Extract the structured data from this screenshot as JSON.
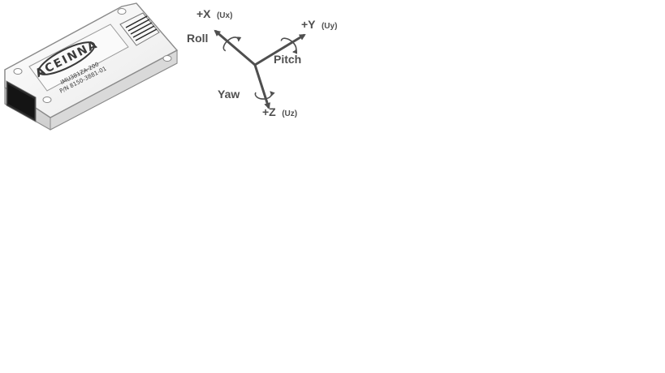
{
  "device": {
    "logo_text": "ACEINNA",
    "model_line": "IMU381ZA-200",
    "part_line": "P/N 8150-3881-01"
  },
  "axes": {
    "x": {
      "label": "+X",
      "unit": "(Ux)"
    },
    "y": {
      "label": "+Y",
      "unit": "(Uy)"
    },
    "z": {
      "label": "+Z",
      "unit": "(Uz)"
    }
  },
  "rotations": {
    "roll": "Roll",
    "pitch": "Pitch",
    "yaw": "Yaw"
  },
  "colors": {
    "axis": "#4f4f4f",
    "label": "#4f4f4f",
    "device_outline": "#8a8a8a",
    "device_fill": "#f2f2f2",
    "connector": "#2a2a2a"
  }
}
